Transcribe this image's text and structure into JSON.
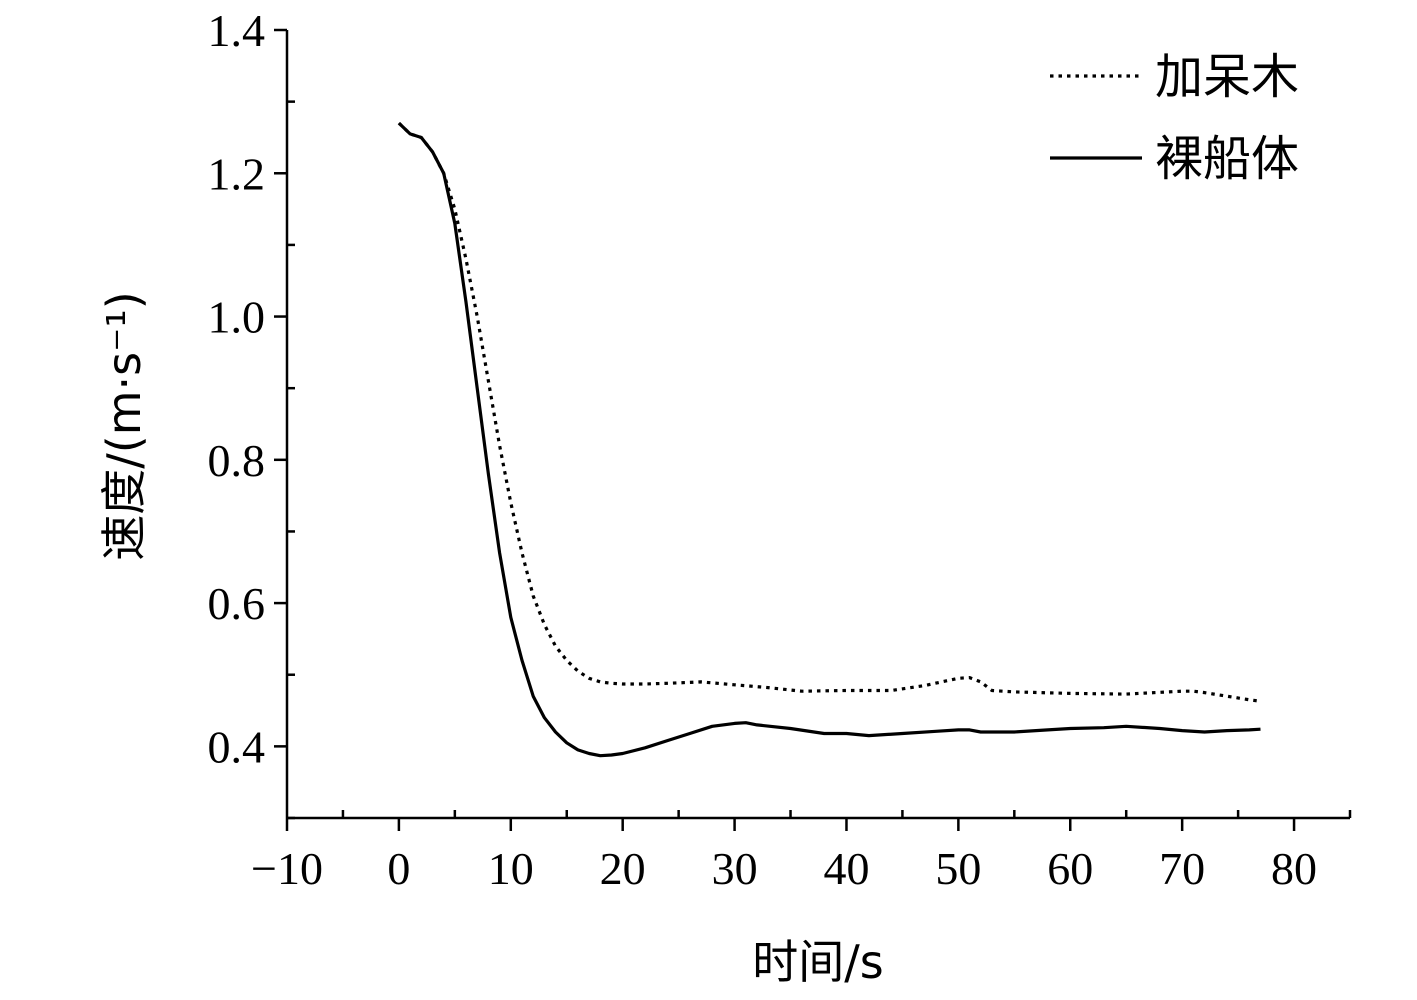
{
  "chart_data": {
    "type": "line",
    "title": "",
    "xlabel": "时间/s",
    "ylabel": "速度/(m·s⁻¹)",
    "xlim": [
      -10,
      85
    ],
    "ylim": [
      0.3,
      1.4
    ],
    "xticks": [
      -10,
      0,
      10,
      20,
      30,
      40,
      50,
      60,
      70,
      80
    ],
    "xtick_labels": [
      "−10",
      "0",
      "10",
      "20",
      "30",
      "40",
      "50",
      "60",
      "70",
      "80"
    ],
    "yticks": [
      0.4,
      0.6,
      0.8,
      1.0,
      1.2,
      1.4
    ],
    "ytick_labels": [
      "0.4",
      "0.6",
      "0.8",
      "1.0",
      "1.2",
      "1.4"
    ],
    "grid": false,
    "legend_position": "top-right",
    "series": [
      {
        "name": "加呆木",
        "style": "dotted",
        "x": [
          0,
          1,
          2,
          3,
          4,
          5,
          6,
          7,
          8,
          9,
          10,
          11,
          12,
          13,
          14,
          15,
          16,
          17,
          18,
          19,
          20,
          22,
          24,
          27,
          30,
          33,
          36,
          40,
          44,
          47,
          50,
          51,
          52,
          53,
          55,
          60,
          65,
          70,
          71,
          72,
          74,
          76,
          77
        ],
        "values": [
          1.27,
          1.255,
          1.25,
          1.23,
          1.2,
          1.15,
          1.08,
          1.0,
          0.91,
          0.82,
          0.74,
          0.67,
          0.61,
          0.57,
          0.54,
          0.52,
          0.505,
          0.495,
          0.49,
          0.488,
          0.487,
          0.487,
          0.488,
          0.49,
          0.486,
          0.482,
          0.477,
          0.478,
          0.478,
          0.485,
          0.495,
          0.496,
          0.49,
          0.478,
          0.476,
          0.474,
          0.473,
          0.477,
          0.477,
          0.475,
          0.47,
          0.465,
          0.463
        ]
      },
      {
        "name": "裸船体",
        "style": "solid",
        "x": [
          0,
          1,
          2,
          3,
          4,
          5,
          6,
          7,
          8,
          9,
          10,
          11,
          12,
          13,
          14,
          15,
          16,
          17,
          18,
          19,
          20,
          22,
          24,
          26,
          28,
          30,
          31,
          32,
          35,
          38,
          40,
          42,
          45,
          48,
          50,
          51,
          52,
          55,
          58,
          60,
          63,
          65,
          68,
          70,
          72,
          74,
          76,
          77
        ],
        "values": [
          1.27,
          1.255,
          1.25,
          1.23,
          1.2,
          1.13,
          1.02,
          0.9,
          0.78,
          0.67,
          0.58,
          0.52,
          0.47,
          0.44,
          0.42,
          0.405,
          0.395,
          0.39,
          0.387,
          0.388,
          0.39,
          0.398,
          0.408,
          0.418,
          0.428,
          0.432,
          0.433,
          0.43,
          0.425,
          0.418,
          0.418,
          0.415,
          0.418,
          0.421,
          0.423,
          0.423,
          0.42,
          0.42,
          0.423,
          0.425,
          0.426,
          0.428,
          0.425,
          0.422,
          0.42,
          0.422,
          0.423,
          0.424
        ]
      }
    ]
  }
}
